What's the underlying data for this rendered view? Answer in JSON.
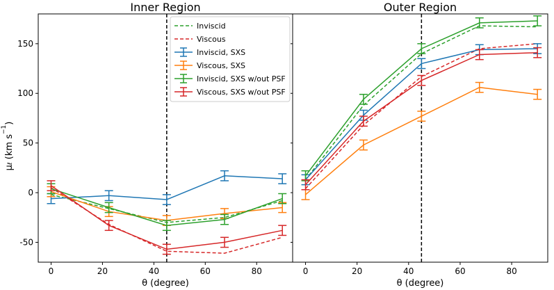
{
  "chart_data": {
    "type": "line",
    "ylabel_main": "μ",
    "ylabel_sub": "ℓ",
    "ylabel_units": "(km s",
    "ylabel_exp": "−1",
    "ylabel_close": ")",
    "ylim": [
      -70,
      180
    ],
    "yticks": [
      -50,
      0,
      50,
      100,
      150
    ],
    "legend": {
      "placement": "upper-right of left panel",
      "entries": [
        {
          "label": "Inviscid",
          "color": "#2ca02c",
          "style": "dashed"
        },
        {
          "label": "Viscous",
          "color": "#d62728",
          "style": "dashed"
        },
        {
          "label": "Inviscid, SXS",
          "color": "#1f77b4",
          "style": "errorbar"
        },
        {
          "label": "Viscous, SXS",
          "color": "#ff7f0e",
          "style": "errorbar"
        },
        {
          "label": "Inviscid, SXS w/out PSF",
          "color": "#2ca02c",
          "style": "errorbar"
        },
        {
          "label": "Viscous, SXS w/out PSF",
          "color": "#d62728",
          "style": "errorbar"
        }
      ]
    },
    "panels": [
      {
        "title": "Inner Region",
        "xlabel": "θ (degree)",
        "xlim": [
          -5,
          94
        ],
        "xticks": [
          0,
          20,
          40,
          60,
          80
        ],
        "vline": 45,
        "series": [
          {
            "name": "Inviscid",
            "color": "#2ca02c",
            "style": "dashed",
            "x": [
              0,
              22.5,
              45,
              67.5,
              90
            ],
            "y": [
              -2,
              -16,
              -30,
              -25,
              -8
            ]
          },
          {
            "name": "Viscous",
            "color": "#d62728",
            "style": "dashed",
            "x": [
              0,
              22.5,
              45,
              67.5,
              90
            ],
            "y": [
              5,
              -32,
              -59,
              -61,
              -45
            ]
          },
          {
            "name": "Inviscid, SXS",
            "color": "#1f77b4",
            "style": "errorbar",
            "x": [
              0,
              22.5,
              45,
              67.5,
              90
            ],
            "y": [
              -6,
              -3,
              -7,
              17,
              14
            ],
            "err": [
              5,
              5,
              5,
              5,
              5
            ]
          },
          {
            "name": "Viscous, SXS",
            "color": "#ff7f0e",
            "style": "errorbar",
            "x": [
              0,
              22.5,
              45,
              67.5,
              90
            ],
            "y": [
              1,
              -19,
              -28,
              -21,
              -15
            ],
            "err": [
              5,
              5,
              5,
              5,
              5
            ]
          },
          {
            "name": "Inviscid, SXS w/out PSF",
            "color": "#2ca02c",
            "style": "errorbar",
            "x": [
              0,
              22.5,
              45,
              67.5,
              90
            ],
            "y": [
              4,
              -15,
              -33,
              -27,
              -6
            ],
            "err": [
              5,
              5,
              5,
              5,
              5
            ]
          },
          {
            "name": "Viscous, SXS w/out PSF",
            "color": "#d62728",
            "style": "errorbar",
            "x": [
              0,
              22.5,
              45,
              67.5,
              90
            ],
            "y": [
              7,
              -33,
              -57,
              -50,
              -38
            ],
            "err": [
              5,
              5,
              5,
              5,
              5
            ]
          }
        ]
      },
      {
        "title": "Outer Region",
        "xlabel": "θ (degree)",
        "xlim": [
          -5,
          94
        ],
        "xticks": [
          0,
          20,
          40,
          60,
          80
        ],
        "vline": 45,
        "series": [
          {
            "name": "Inviscid",
            "color": "#2ca02c",
            "style": "dashed",
            "x": [
              0,
              22.5,
              45,
              67.5,
              90
            ],
            "y": [
              13,
              88,
              140,
              168,
              167
            ]
          },
          {
            "name": "Viscous",
            "color": "#d62728",
            "style": "dashed",
            "x": [
              0,
              22.5,
              45,
              67.5,
              90
            ],
            "y": [
              4,
              68,
              117,
              145,
              150
            ]
          },
          {
            "name": "Inviscid, SXS",
            "color": "#1f77b4",
            "style": "errorbar",
            "x": [
              0,
              22.5,
              45,
              67.5,
              90
            ],
            "y": [
              13,
              78,
              130,
              144,
              145
            ],
            "err": [
              5,
              5,
              5,
              5,
              5
            ]
          },
          {
            "name": "Viscous, SXS",
            "color": "#ff7f0e",
            "style": "errorbar",
            "x": [
              0,
              22.5,
              45,
              67.5,
              90
            ],
            "y": [
              -2,
              48,
              77,
              106,
              99
            ],
            "err": [
              5,
              5,
              5,
              5,
              5
            ]
          },
          {
            "name": "Inviscid, SXS w/out PSF",
            "color": "#2ca02c",
            "style": "errorbar",
            "x": [
              0,
              22.5,
              45,
              67.5,
              90
            ],
            "y": [
              17,
              94,
              145,
              171,
              173
            ],
            "err": [
              5,
              5,
              5,
              5,
              5
            ]
          },
          {
            "name": "Viscous, SXS w/out PSF",
            "color": "#d62728",
            "style": "errorbar",
            "x": [
              0,
              22.5,
              45,
              67.5,
              90
            ],
            "y": [
              8,
              72,
              113,
              139,
              141
            ],
            "err": [
              5,
              5,
              5,
              5,
              5
            ]
          }
        ]
      }
    ]
  }
}
